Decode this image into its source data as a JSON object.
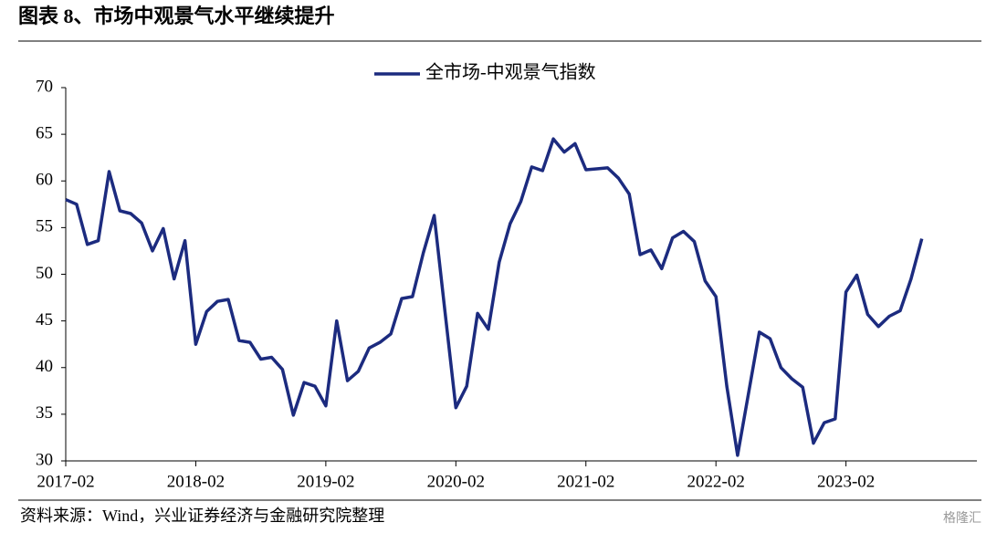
{
  "title": "图表 8、市场中观景气水平继续提升",
  "source": "资料来源：Wind，兴业证券经济与金融研究院整理",
  "watermark": "格隆汇",
  "chart_data": {
    "type": "line",
    "categories": [
      "2017-02",
      null,
      null,
      null,
      null,
      null,
      null,
      null,
      null,
      null,
      null,
      null,
      "2018-02",
      null,
      null,
      null,
      null,
      null,
      null,
      null,
      null,
      null,
      null,
      null,
      "2019-02",
      null,
      null,
      null,
      null,
      null,
      null,
      null,
      null,
      null,
      null,
      null,
      "2020-02",
      null,
      null,
      null,
      null,
      null,
      null,
      null,
      null,
      null,
      null,
      null,
      "2021-02",
      null,
      null,
      null,
      null,
      null,
      null,
      null,
      null,
      null,
      null,
      null,
      "2022-02",
      null,
      null,
      null,
      null,
      null,
      null,
      null,
      null,
      null,
      null,
      null,
      "2023-02",
      null,
      null,
      null,
      null,
      null,
      null,
      null
    ],
    "series": [
      {
        "name": "全市场-中观景气指数",
        "color": "#1c2b7f",
        "values": [
          58.0,
          57.5,
          53.2,
          53.6,
          61.0,
          56.8,
          56.5,
          55.5,
          52.5,
          54.9,
          49.5,
          53.6,
          42.5,
          46.0,
          47.1,
          47.3,
          42.9,
          42.7,
          40.9,
          41.1,
          39.8,
          34.9,
          38.4,
          38.0,
          35.9,
          45.0,
          38.6,
          39.6,
          42.1,
          42.7,
          43.6,
          47.4,
          47.6,
          52.3,
          56.3,
          46.0,
          35.7,
          38.0,
          45.8,
          44.1,
          51.3,
          55.4,
          57.8,
          61.5,
          61.1,
          64.5,
          63.1,
          64.0,
          61.2,
          61.3,
          61.4,
          60.3,
          58.6,
          52.1,
          52.6,
          50.6,
          53.9,
          54.6,
          53.5,
          49.3,
          47.6,
          38.0,
          30.6,
          37.2,
          43.8,
          43.1,
          40.0,
          38.8,
          37.9,
          31.9,
          34.1,
          34.5,
          48.1,
          49.9,
          45.7,
          44.4,
          45.5,
          46.1,
          49.5,
          53.8
        ]
      }
    ],
    "ylim": [
      30,
      70
    ],
    "yticks": [
      30,
      35,
      40,
      45,
      50,
      55,
      60,
      65,
      70
    ],
    "legend": "top"
  }
}
